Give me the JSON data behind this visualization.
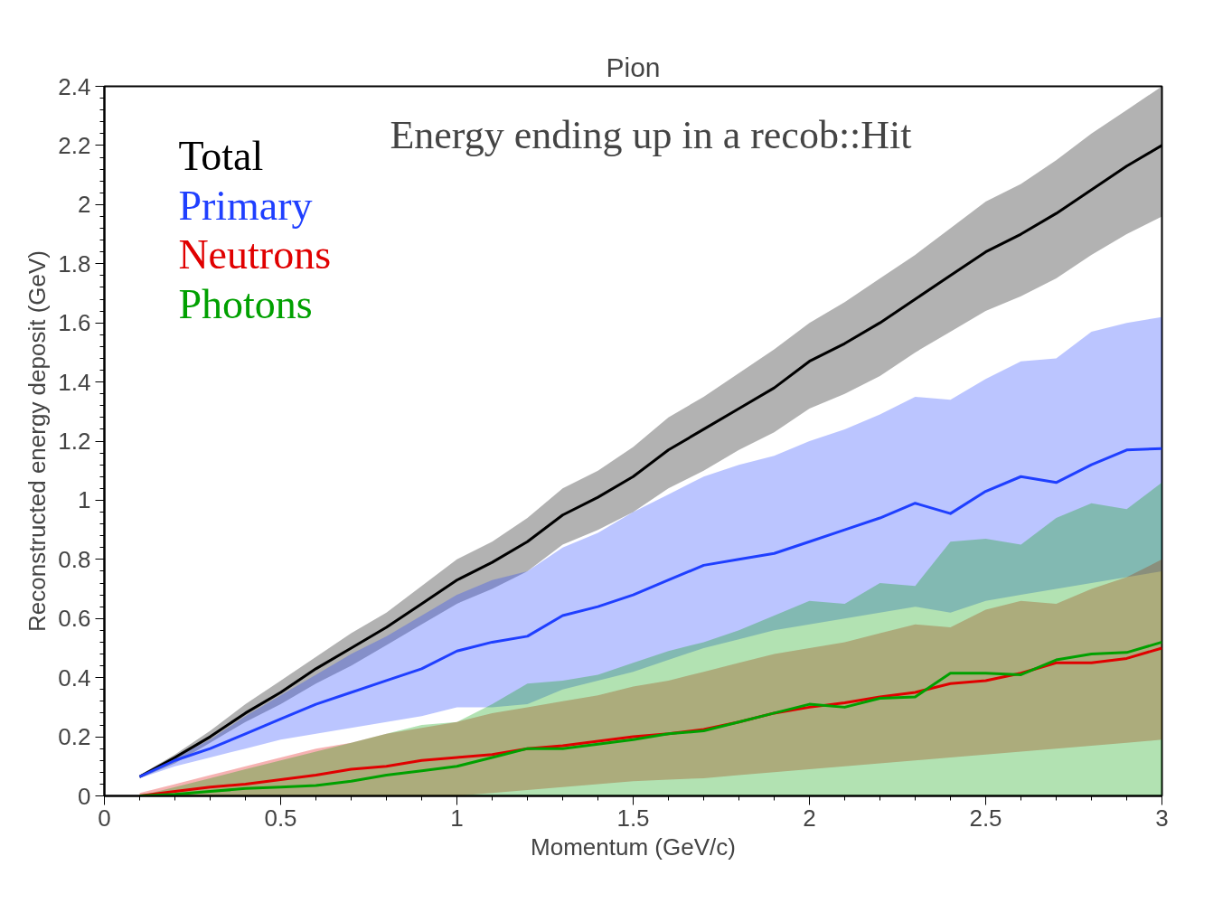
{
  "chart_data": {
    "type": "line",
    "title": "Pion",
    "xlabel": "Momentum (GeV/c)",
    "ylabel": "Reconstructed energy deposit (GeV)",
    "annotations": [
      "Energy ending up in a recob::Hit"
    ],
    "x": [
      0.1,
      0.2,
      0.3,
      0.4,
      0.5,
      0.6,
      0.7,
      0.8,
      0.9,
      1.0,
      1.1,
      1.2,
      1.3,
      1.4,
      1.5,
      1.6,
      1.7,
      1.8,
      1.9,
      2.0,
      2.1,
      2.2,
      2.3,
      2.4,
      2.5,
      2.6,
      2.7,
      2.8,
      2.9,
      3.0
    ],
    "xlim": [
      0,
      3
    ],
    "ylim": [
      0,
      2.4
    ],
    "xticks": [
      0,
      0.5,
      1,
      1.5,
      2,
      2.5,
      3
    ],
    "yticks": [
      0,
      0.2,
      0.4,
      0.6,
      0.8,
      1,
      1.2,
      1.4,
      1.6,
      1.8,
      2,
      2.2,
      2.4
    ],
    "grid": false,
    "legend": "top left",
    "marker": "none",
    "line_style": "solid",
    "series": [
      {
        "name": "Total",
        "color": "#000000",
        "values": [
          0.065,
          0.13,
          0.2,
          0.28,
          0.35,
          0.43,
          0.5,
          0.57,
          0.65,
          0.73,
          0.79,
          0.86,
          0.95,
          1.01,
          1.08,
          1.17,
          1.24,
          1.31,
          1.38,
          1.47,
          1.53,
          1.6,
          1.68,
          1.76,
          1.84,
          1.9,
          1.97,
          2.05,
          2.13,
          2.2
        ],
        "upper": [
          0.07,
          0.14,
          0.22,
          0.31,
          0.39,
          0.47,
          0.55,
          0.62,
          0.71,
          0.8,
          0.86,
          0.94,
          1.04,
          1.1,
          1.18,
          1.28,
          1.35,
          1.43,
          1.51,
          1.6,
          1.67,
          1.75,
          1.83,
          1.92,
          2.01,
          2.07,
          2.15,
          2.24,
          2.32,
          2.4
        ],
        "lower": [
          0.06,
          0.11,
          0.18,
          0.25,
          0.31,
          0.38,
          0.44,
          0.51,
          0.58,
          0.65,
          0.7,
          0.76,
          0.85,
          0.9,
          0.96,
          1.04,
          1.1,
          1.17,
          1.23,
          1.31,
          1.36,
          1.42,
          1.5,
          1.57,
          1.64,
          1.69,
          1.75,
          1.83,
          1.9,
          1.96
        ]
      },
      {
        "name": "Primary",
        "color": "#1f3fff",
        "values": [
          0.065,
          0.12,
          0.16,
          0.21,
          0.26,
          0.31,
          0.35,
          0.39,
          0.43,
          0.49,
          0.52,
          0.54,
          0.61,
          0.64,
          0.68,
          0.73,
          0.78,
          0.8,
          0.82,
          0.86,
          0.9,
          0.94,
          0.99,
          0.955,
          1.03,
          1.08,
          1.06,
          1.12,
          1.17,
          1.175
        ],
        "upper": [
          0.07,
          0.13,
          0.19,
          0.27,
          0.34,
          0.41,
          0.48,
          0.54,
          0.61,
          0.68,
          0.73,
          0.76,
          0.84,
          0.89,
          0.96,
          1.02,
          1.08,
          1.12,
          1.15,
          1.2,
          1.24,
          1.29,
          1.35,
          1.34,
          1.41,
          1.47,
          1.48,
          1.57,
          1.6,
          1.62
        ],
        "lower": [
          0.06,
          0.1,
          0.13,
          0.16,
          0.19,
          0.21,
          0.23,
          0.25,
          0.27,
          0.3,
          0.3,
          0.31,
          0.36,
          0.39,
          0.42,
          0.46,
          0.5,
          0.53,
          0.56,
          0.58,
          0.6,
          0.62,
          0.64,
          0.62,
          0.66,
          0.68,
          0.7,
          0.72,
          0.74,
          0.76
        ]
      },
      {
        "name": "Neutrons",
        "color": "#e00000",
        "values": [
          0.0,
          0.015,
          0.03,
          0.04,
          0.055,
          0.07,
          0.09,
          0.1,
          0.12,
          0.13,
          0.14,
          0.16,
          0.17,
          0.185,
          0.2,
          0.21,
          0.225,
          0.25,
          0.28,
          0.3,
          0.315,
          0.335,
          0.35,
          0.38,
          0.39,
          0.415,
          0.45,
          0.45,
          0.465,
          0.5
        ],
        "upper": [
          0.01,
          0.04,
          0.07,
          0.1,
          0.13,
          0.16,
          0.18,
          0.21,
          0.23,
          0.25,
          0.28,
          0.3,
          0.32,
          0.34,
          0.37,
          0.39,
          0.42,
          0.45,
          0.48,
          0.5,
          0.52,
          0.55,
          0.58,
          0.57,
          0.63,
          0.66,
          0.65,
          0.7,
          0.74,
          0.8
        ],
        "lower": [
          0,
          0,
          0,
          0,
          0,
          0,
          0,
          0,
          0,
          0,
          0.01,
          0.02,
          0.03,
          0.04,
          0.05,
          0.055,
          0.06,
          0.07,
          0.08,
          0.09,
          0.1,
          0.11,
          0.12,
          0.13,
          0.14,
          0.15,
          0.16,
          0.17,
          0.18,
          0.19
        ]
      },
      {
        "name": "Photons",
        "color": "#00a000",
        "values": [
          0.0,
          0.005,
          0.015,
          0.025,
          0.03,
          0.035,
          0.05,
          0.07,
          0.085,
          0.1,
          0.13,
          0.16,
          0.16,
          0.175,
          0.19,
          0.21,
          0.22,
          0.25,
          0.28,
          0.31,
          0.3,
          0.33,
          0.335,
          0.415,
          0.415,
          0.41,
          0.46,
          0.48,
          0.485,
          0.52
        ],
        "upper": [
          0.0,
          0.03,
          0.06,
          0.09,
          0.12,
          0.15,
          0.18,
          0.21,
          0.24,
          0.25,
          0.31,
          0.38,
          0.39,
          0.41,
          0.45,
          0.49,
          0.52,
          0.56,
          0.61,
          0.66,
          0.65,
          0.72,
          0.71,
          0.86,
          0.87,
          0.85,
          0.94,
          0.99,
          0.97,
          1.06
        ],
        "lower": [
          0,
          0,
          0,
          0,
          0,
          0,
          0,
          0,
          0,
          0,
          0,
          0,
          0,
          0,
          0,
          0,
          0,
          0,
          0,
          0,
          0,
          0,
          0,
          0,
          0,
          0,
          0,
          0,
          0,
          0
        ]
      }
    ]
  }
}
